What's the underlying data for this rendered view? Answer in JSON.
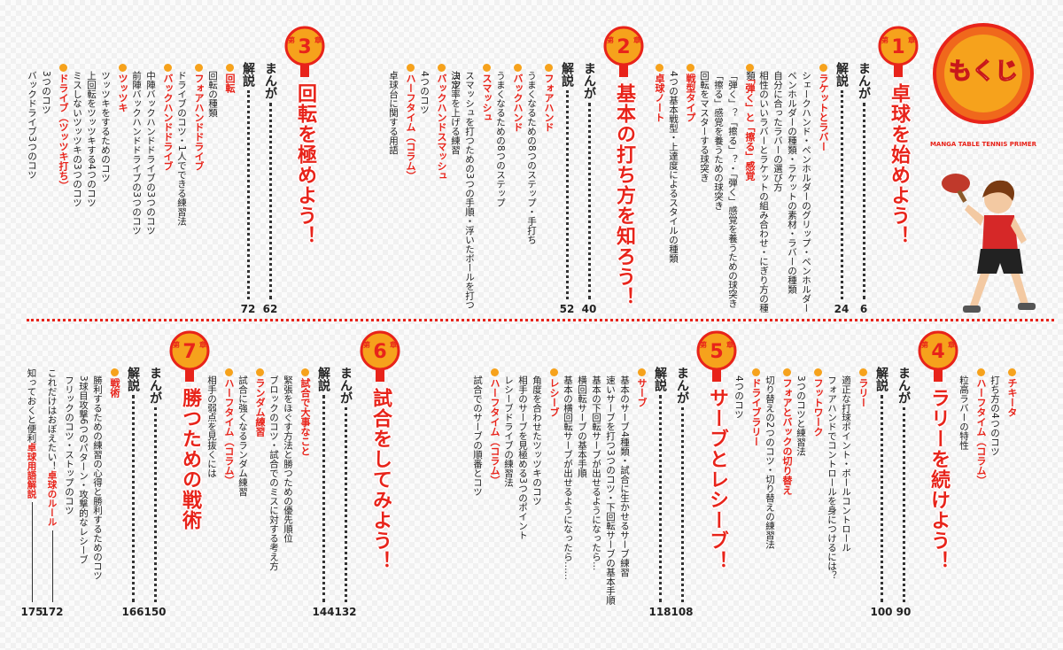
{
  "header": {
    "title": "もくじ",
    "subtitle": "MANGA TABLE TENNIS PRIMER"
  },
  "chapters": [
    {
      "prefix": "第",
      "number": "1",
      "suffix": "章",
      "title": "卓球を始めよう！",
      "pages": [
        {
          "label": "まんが",
          "page": 6
        },
        {
          "label": "解説",
          "page": 24
        }
      ],
      "sections": [
        {
          "heading": "ラケットとラバー",
          "items": [
            "シェークハンド・ペンホルダーのグリップ・ペンホルダー",
            "ペンホルダーの種類・ラケットの素材・ラバーの種類",
            "自分に合ったラバーの選び方",
            "相性のいいラバーとラケットの組み合わせ・にぎり方の種類"
          ]
        },
        {
          "heading": "「弾く」と「擦る」感覚",
          "items": [
            "「弾く」？「擦る」？・「弾く」感覚を養うための球突き",
            "「擦る」感覚を養うための球突き",
            "回転をマスターする球突き"
          ]
        },
        {
          "heading": "戦型タイプ",
          "items": [
            "4つの基本戦型・上達度によるスタイルの種類"
          ]
        },
        {
          "heading": "卓球ノート",
          "items": []
        }
      ]
    },
    {
      "prefix": "第",
      "number": "2",
      "suffix": "章",
      "title": "基本の打ち方を知ろう！",
      "pages": [
        {
          "label": "まんが",
          "page": 40
        },
        {
          "label": "解説",
          "page": 52
        }
      ],
      "sections": [
        {
          "heading": "フォアハンド",
          "items": [
            "うまくなるための8つのステップ・手打ち"
          ]
        },
        {
          "heading": "バックハンド",
          "items": [
            "うまくなるための8つのステップ"
          ]
        },
        {
          "heading": "スマッシュ",
          "items": [
            "スマッシュを打つための3つの手順・浮いたボールを打つコツ",
            "決定率を上げる練習"
          ]
        },
        {
          "heading": "バックハンドスマッシュ",
          "items": [
            "4つのコツ"
          ]
        },
        {
          "heading": "ハーフタイム（コラム）",
          "items": [
            "卓球台に関する用語"
          ]
        }
      ]
    },
    {
      "prefix": "第",
      "number": "3",
      "suffix": "章",
      "title": "回転を極めよう！",
      "pages": [
        {
          "label": "まんが",
          "page": 62
        },
        {
          "label": "解説",
          "page": 72
        }
      ],
      "sections": [
        {
          "heading": "回転",
          "items": [
            "回転の種類"
          ]
        },
        {
          "heading": "フォアハンドドライブ",
          "items": [
            "ドライブのコツ・1人でできる練習法"
          ]
        },
        {
          "heading": "バックハンドドライブ",
          "items": [
            "中陣バックハンドドライブの3つのコツ",
            "前陣バックハンドドライブの3つのコツ"
          ]
        },
        {
          "heading": "ツッツキ",
          "items": [
            "ツッツキをするためのコツ",
            "上回転をツッツキする4つのコツ",
            "ミスしないツッツキの3つのコツ"
          ]
        },
        {
          "heading": "ドライブ（ツッツキ打ち）",
          "items": [
            "3つのコツ",
            "バックドライブ3つのコツ"
          ]
        }
      ],
      "continued": {
        "sections": [
          {
            "heading": "チキータ",
            "items": [
              "打ち方の4つのコツ"
            ]
          },
          {
            "heading": "ハーフタイム（コラム）",
            "items": [
              "粒高ラバーの特性"
            ]
          }
        ]
      }
    },
    {
      "prefix": "第",
      "number": "4",
      "suffix": "章",
      "title": "ラリーを続けよう！",
      "pages": [
        {
          "label": "まんが",
          "page": 90
        },
        {
          "label": "解説",
          "page": 100
        }
      ],
      "sections": [
        {
          "heading": "ラリー",
          "items": [
            "適正な打球ポイント・ボールコントロール",
            "フォアハンドでコントロールを身につけるには？"
          ]
        },
        {
          "heading": "フットワーク",
          "items": [
            "3つのコツと練習法"
          ]
        },
        {
          "heading": "フォアとバックの切り替え",
          "items": [
            "切り替えの2つのコツ・切り替えの練習法"
          ]
        },
        {
          "heading": "ドライブラリー",
          "items": [
            "4つのコツ"
          ]
        }
      ]
    },
    {
      "prefix": "第",
      "number": "5",
      "suffix": "章",
      "title": "サーブとレシーブ！",
      "pages": [
        {
          "label": "まんが",
          "page": 108
        },
        {
          "label": "解説",
          "page": 118
        }
      ],
      "sections": [
        {
          "heading": "サーブ",
          "items": [
            "基本のサーブ4種類・試合に生かせるサーブ練習",
            "速いサーブを打つ3つのコツ・下回転サーブの基本手順",
            "基本の下回転サーブが出せるようになったら…",
            "横回転サーブの基本手順",
            "基本の横回転サーブが出せるようになったら……"
          ]
        },
        {
          "heading": "レシーブ",
          "items": [
            "角度を合わせたツッツキのコツ",
            "相手のサーブを見極める3つのポイント",
            "レシーブドライブの練習法"
          ]
        },
        {
          "heading": "ハーフタイム（コラム）",
          "items": [
            "試合でのサーブの順番とコツ"
          ]
        }
      ]
    },
    {
      "prefix": "第",
      "number": "6",
      "suffix": "章",
      "title": "試合をしてみよう！",
      "pages": [
        {
          "label": "まんが",
          "page": 132
        },
        {
          "label": "解説",
          "page": 144
        }
      ],
      "sections": [
        {
          "heading": "試合で大事なこと",
          "items": [
            "緊張をほぐす方法と勝つための優先順位",
            "ブロックのコツ・試合でのミスに対する考え方"
          ]
        },
        {
          "heading": "ランダム練習",
          "items": [
            "試合に強くなるランダム練習"
          ]
        },
        {
          "heading": "ハーフタイム（コラム）",
          "items": [
            "相手の弱点を見抜くには"
          ]
        }
      ]
    },
    {
      "prefix": "第",
      "number": "7",
      "suffix": "章",
      "title": "勝つための戦術",
      "pages": [
        {
          "label": "まんが",
          "page": 150
        },
        {
          "label": "解説",
          "page": 166
        }
      ],
      "sections": [
        {
          "heading": "戦術",
          "items": [
            "勝利するための練習の心得と勝利するためのコツ",
            "3球目攻撃6つのパターン・攻撃的なレシーブ",
            "フリックのコツ・ストップのコツ"
          ]
        }
      ],
      "extras": [
        {
          "text": "これだけはおぼえたい！",
          "highlight": "卓球のルール",
          "page": 172
        },
        {
          "text": "知っておくと便利",
          "highlight": "卓球用語解説",
          "page": 175
        }
      ]
    }
  ]
}
